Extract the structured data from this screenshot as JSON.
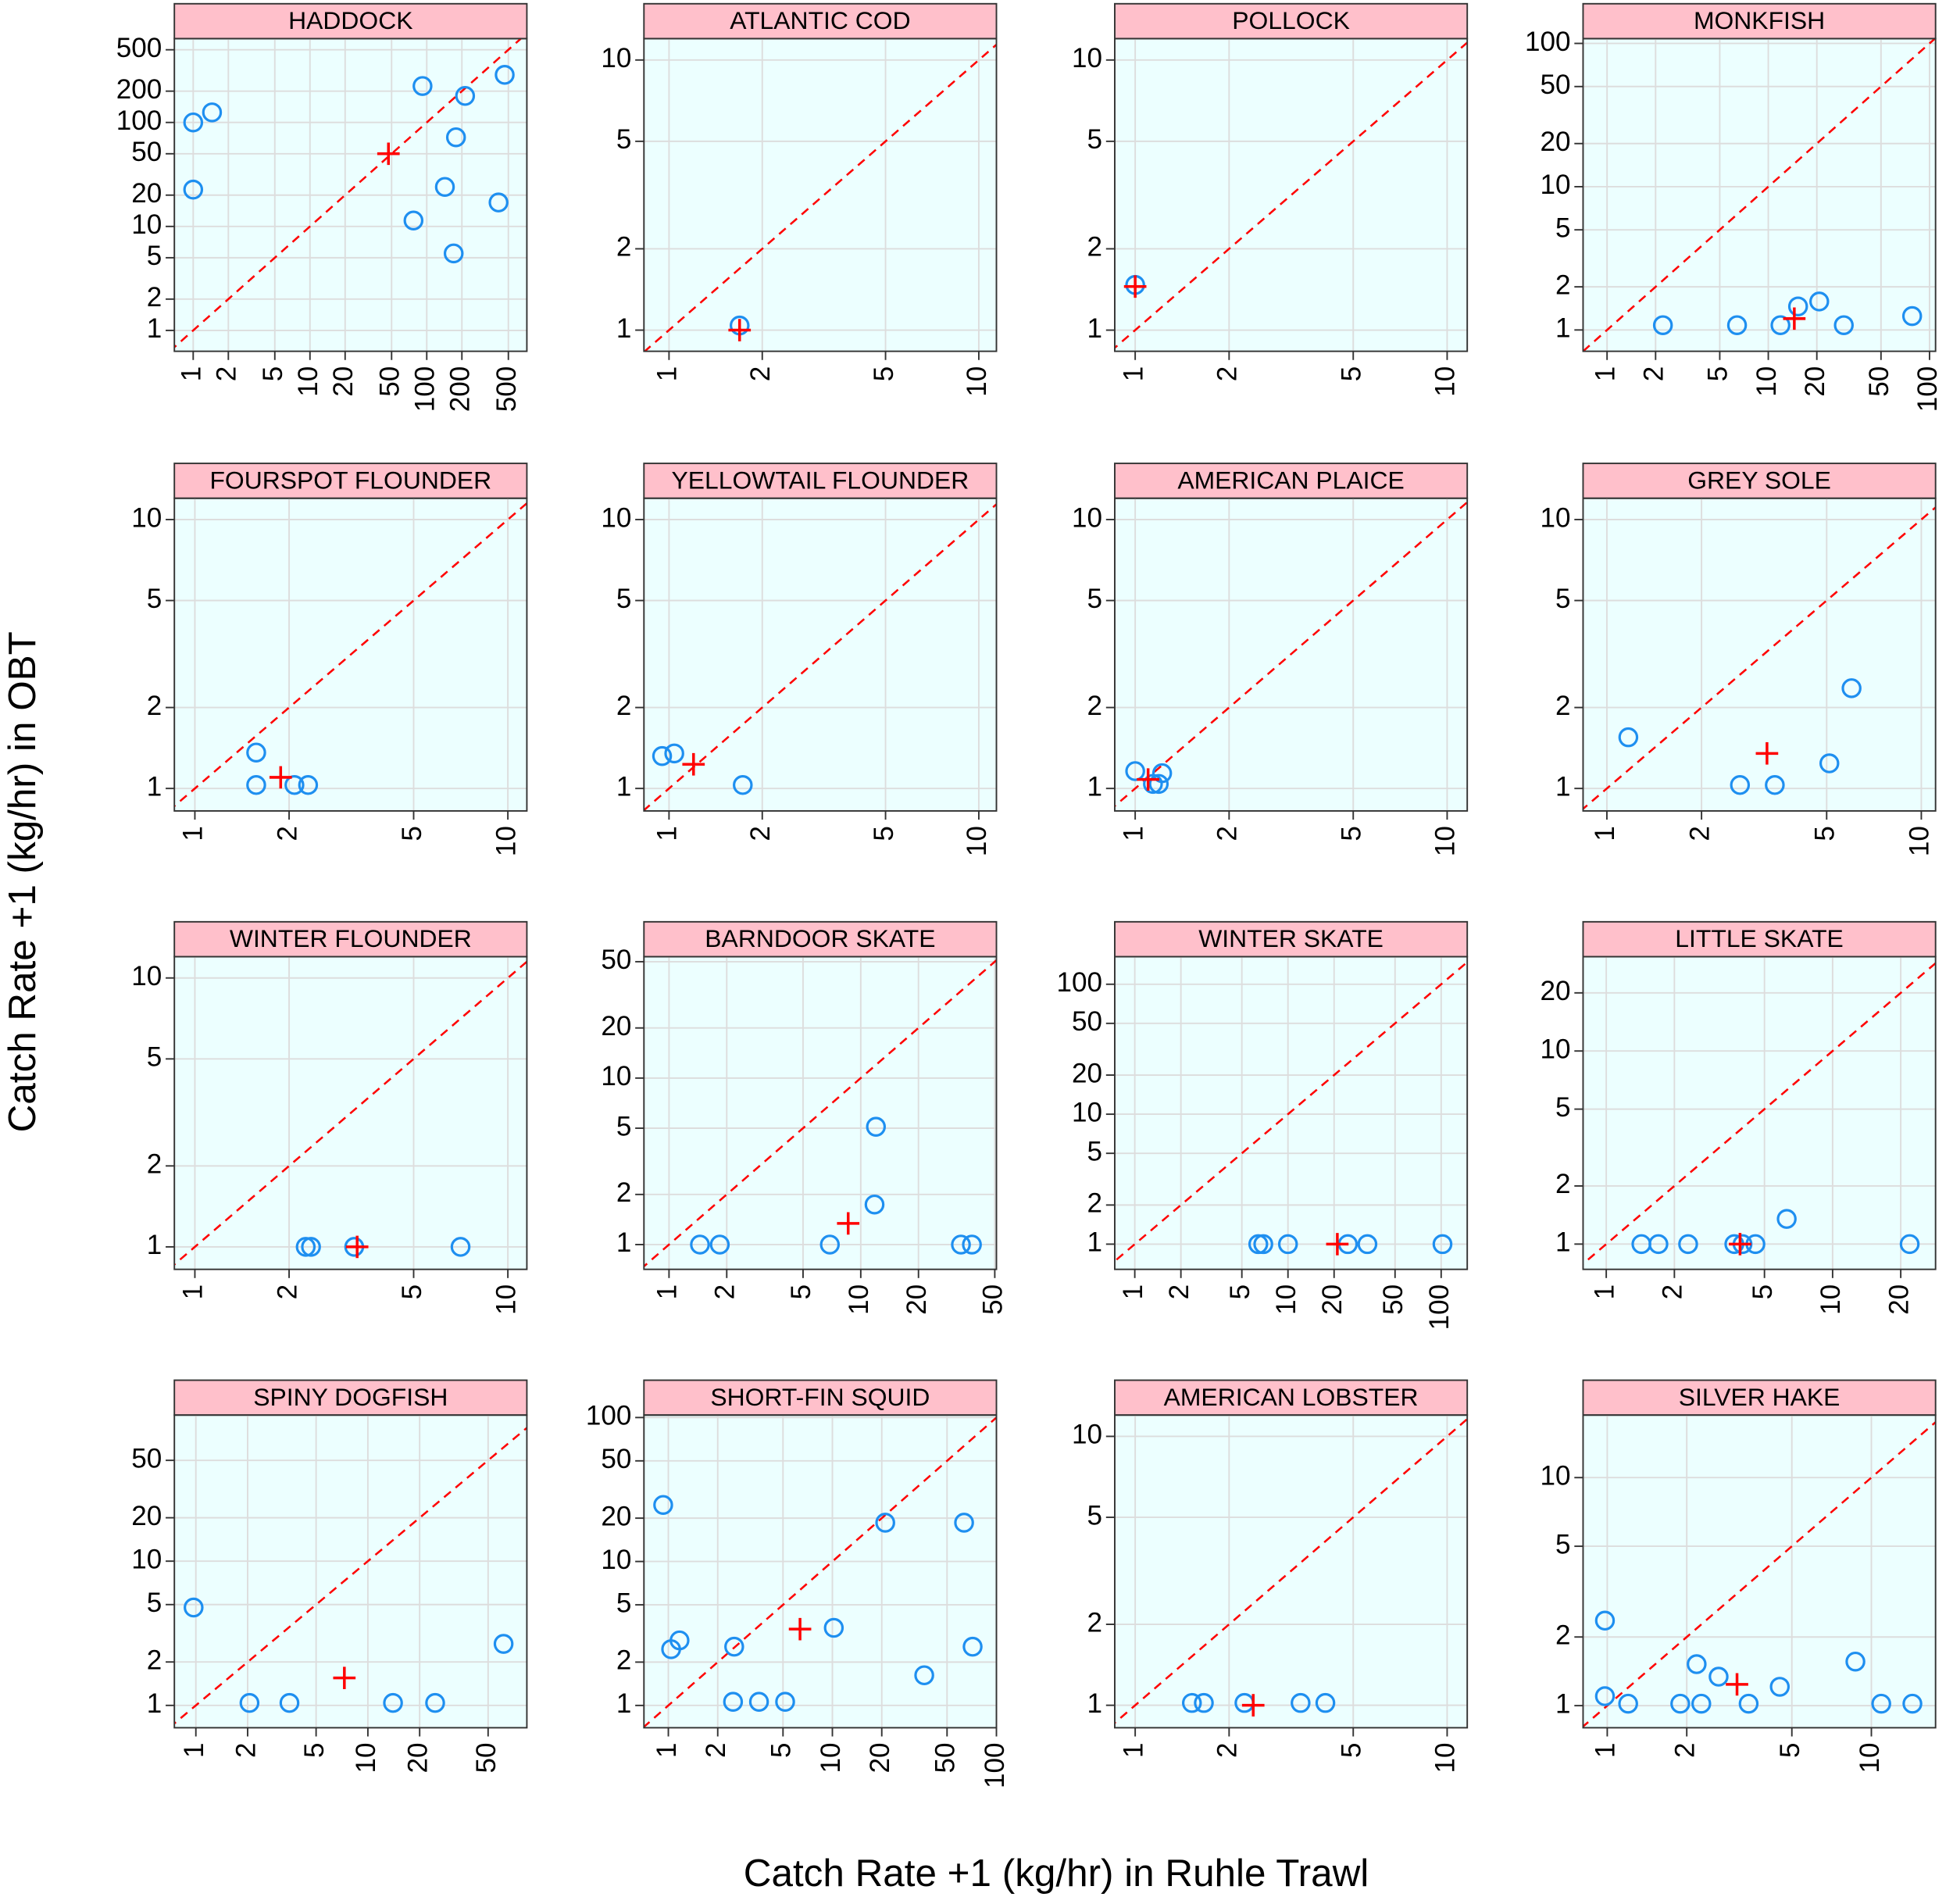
{
  "xlabel": "Catch Rate +1 (kg/hr) in Ruhle Trawl",
  "ylabel": "Catch Rate +1 (kg/hr) in OBT",
  "chart_data": [
    {
      "type": "scatter",
      "title": "HADDOCK",
      "xscale": "log",
      "yscale": "log",
      "grid": true,
      "identity_line": {
        "color": "#ff0000"
      },
      "xlim": [
        0.69,
        720
      ],
      "ylim": [
        0.63,
        640
      ],
      "xticks": [
        1,
        2,
        5,
        10,
        20,
        50,
        100,
        200,
        500
      ],
      "yticks": [
        1,
        2,
        5,
        10,
        20,
        50,
        100,
        200,
        500
      ],
      "series": [
        {
          "marker": "circle",
          "color": "#1e8ff0",
          "x": [
            1,
            1.45,
            1,
            92,
            213,
            465,
            178,
            143,
            412,
            77,
            170
          ],
          "values": [
            100,
            125,
            22.6,
            224,
            180,
            287,
            72,
            24,
            17,
            11.4,
            5.5
          ]
        },
        {
          "marker": "plus",
          "color": "#ff0000",
          "x": [
            47
          ],
          "values": [
            50
          ]
        }
      ]
    },
    {
      "type": "scatter",
      "title": "ATLANTIC COD",
      "xscale": "log",
      "yscale": "log",
      "grid": true,
      "identity_line": {
        "color": "#ff0000"
      },
      "xlim": [
        0.83,
        11.4
      ],
      "ylim": [
        0.835,
        12
      ],
      "xticks": [
        1,
        2,
        5,
        10
      ],
      "yticks": [
        1,
        2,
        5,
        10
      ],
      "series": [
        {
          "marker": "circle",
          "color": "#1e8ff0",
          "x": [
            1.69
          ],
          "values": [
            1.04
          ]
        },
        {
          "marker": "plus",
          "color": "#ff0000",
          "x": [
            1.69
          ],
          "values": [
            1.0
          ]
        }
      ]
    },
    {
      "type": "scatter",
      "title": "POLLOCK",
      "xscale": "log",
      "yscale": "log",
      "grid": true,
      "identity_line": {
        "color": "#ff0000"
      },
      "xlim": [
        0.86,
        11.6
      ],
      "ylim": [
        0.835,
        12
      ],
      "xticks": [
        1,
        2,
        5,
        10
      ],
      "yticks": [
        1,
        2,
        5,
        10
      ],
      "series": [
        {
          "marker": "circle",
          "color": "#1e8ff0",
          "x": [
            1.0
          ],
          "values": [
            1.47
          ]
        },
        {
          "marker": "plus",
          "color": "#ff0000",
          "x": [
            1.0
          ],
          "values": [
            1.45
          ]
        }
      ]
    },
    {
      "type": "scatter",
      "title": "MONKFISH",
      "xscale": "log",
      "yscale": "log",
      "grid": true,
      "identity_line": {
        "color": "#ff0000"
      },
      "xlim": [
        0.71,
        109
      ],
      "ylim": [
        0.71,
        108
      ],
      "xticks": [
        1,
        2,
        5,
        10,
        20,
        50,
        100
      ],
      "yticks": [
        1,
        2,
        5,
        10,
        20,
        50,
        100
      ],
      "series": [
        {
          "marker": "circle",
          "color": "#1e8ff0",
          "x": [
            2.22,
            6.4,
            11.9,
            15.3,
            20.7,
            29.4,
            78
          ],
          "values": [
            1.08,
            1.08,
            1.08,
            1.46,
            1.58,
            1.08,
            1.25
          ]
        },
        {
          "marker": "plus",
          "color": "#ff0000",
          "x": [
            14.5
          ],
          "values": [
            1.2
          ]
        }
      ]
    },
    {
      "type": "scatter",
      "title": "FOURSPOT FLOUNDER",
      "xscale": "log",
      "yscale": "log",
      "grid": true,
      "identity_line": {
        "color": "#ff0000"
      },
      "xlim": [
        0.86,
        11.5
      ],
      "ylim": [
        0.825,
        12
      ],
      "xticks": [
        1,
        2,
        5,
        10
      ],
      "yticks": [
        1,
        2,
        5,
        10
      ],
      "series": [
        {
          "marker": "circle",
          "color": "#1e8ff0",
          "x": [
            1.57,
            1.57,
            2.08,
            2.3
          ],
          "values": [
            1.36,
            1.03,
            1.03,
            1.03
          ]
        },
        {
          "marker": "plus",
          "color": "#ff0000",
          "x": [
            1.88
          ],
          "values": [
            1.1
          ]
        }
      ]
    },
    {
      "type": "scatter",
      "title": "YELLOWTAIL FLOUNDER",
      "xscale": "log",
      "yscale": "log",
      "grid": true,
      "identity_line": {
        "color": "#ff0000"
      },
      "xlim": [
        0.83,
        11.4
      ],
      "ylim": [
        0.825,
        12
      ],
      "xticks": [
        1,
        2,
        5,
        10
      ],
      "yticks": [
        1,
        2,
        5,
        10
      ],
      "series": [
        {
          "marker": "circle",
          "color": "#1e8ff0",
          "x": [
            0.95,
            1.04,
            1.73
          ],
          "values": [
            1.32,
            1.35,
            1.03
          ]
        },
        {
          "marker": "plus",
          "color": "#ff0000",
          "x": [
            1.2
          ],
          "values": [
            1.23
          ]
        }
      ]
    },
    {
      "type": "scatter",
      "title": "AMERICAN PLAICE",
      "xscale": "log",
      "yscale": "log",
      "grid": true,
      "identity_line": {
        "color": "#ff0000"
      },
      "xlim": [
        0.86,
        11.6
      ],
      "ylim": [
        0.825,
        12
      ],
      "xticks": [
        1,
        2,
        5,
        10
      ],
      "yticks": [
        1,
        2,
        5,
        10
      ],
      "series": [
        {
          "marker": "circle",
          "color": "#1e8ff0",
          "x": [
            1.0,
            1.14,
            1.19,
            1.22
          ],
          "values": [
            1.16,
            1.04,
            1.04,
            1.14
          ]
        },
        {
          "marker": "plus",
          "color": "#ff0000",
          "x": [
            1.1
          ],
          "values": [
            1.08
          ]
        }
      ]
    },
    {
      "type": "scatter",
      "title": "GREY SOLE",
      "xscale": "log",
      "yscale": "log",
      "grid": true,
      "identity_line": {
        "color": "#ff0000"
      },
      "xlim": [
        0.84,
        11.1
      ],
      "ylim": [
        0.825,
        12
      ],
      "xticks": [
        1,
        2,
        5,
        10
      ],
      "yticks": [
        1,
        2,
        5,
        10
      ],
      "series": [
        {
          "marker": "circle",
          "color": "#1e8ff0",
          "x": [
            1.17,
            2.65,
            3.42,
            5.1,
            6.0
          ],
          "values": [
            1.55,
            1.03,
            1.03,
            1.24,
            2.36
          ]
        },
        {
          "marker": "plus",
          "color": "#ff0000",
          "x": [
            3.23
          ],
          "values": [
            1.35
          ]
        }
      ]
    },
    {
      "type": "scatter",
      "title": "WINTER FLOUNDER",
      "xscale": "log",
      "yscale": "log",
      "grid": true,
      "identity_line": {
        "color": "#ff0000"
      },
      "xlim": [
        0.86,
        11.5
      ],
      "ylim": [
        0.825,
        12
      ],
      "xticks": [
        1,
        2,
        5,
        10
      ],
      "yticks": [
        1,
        2,
        5,
        10
      ],
      "series": [
        {
          "marker": "circle",
          "color": "#1e8ff0",
          "x": [
            2.26,
            2.35,
            3.23,
            7.06
          ],
          "values": [
            1.0,
            1.0,
            1.0,
            1.0
          ]
        },
        {
          "marker": "plus",
          "color": "#ff0000",
          "x": [
            3.3
          ],
          "values": [
            1.0
          ]
        }
      ]
    },
    {
      "type": "scatter",
      "title": "BARNDOOR SKATE",
      "xscale": "log",
      "yscale": "log",
      "grid": true,
      "identity_line": {
        "color": "#ff0000"
      },
      "xlim": [
        0.74,
        51
      ],
      "ylim": [
        0.71,
        53.6
      ],
      "xticks": [
        1,
        2,
        5,
        10,
        20,
        50
      ],
      "yticks": [
        1,
        2,
        5,
        10,
        20,
        50
      ],
      "series": [
        {
          "marker": "circle",
          "color": "#1e8ff0",
          "x": [
            1.45,
            1.84,
            6.9,
            11.8,
            12.0,
            33.3,
            38
          ],
          "values": [
            1.0,
            1.0,
            1.0,
            1.74,
            5.1,
            1.0,
            1.0
          ]
        },
        {
          "marker": "plus",
          "color": "#ff0000",
          "x": [
            8.6
          ],
          "values": [
            1.34
          ]
        }
      ]
    },
    {
      "type": "scatter",
      "title": "WINTER SKATE",
      "xscale": "log",
      "yscale": "log",
      "grid": true,
      "identity_line": {
        "color": "#ff0000"
      },
      "xlim": [
        0.74,
        148
      ],
      "ylim": [
        0.64,
        163
      ],
      "xticks": [
        1,
        2,
        5,
        10,
        20,
        50,
        100
      ],
      "yticks": [
        1,
        2,
        5,
        10,
        20,
        50,
        100
      ],
      "series": [
        {
          "marker": "circle",
          "color": "#1e8ff0",
          "x": [
            6.4,
            6.9,
            10,
            24.6,
            33,
            102
          ],
          "values": [
            1.0,
            1.0,
            1.0,
            1.0,
            1.0,
            1.0
          ]
        },
        {
          "marker": "plus",
          "color": "#ff0000",
          "x": [
            21
          ],
          "values": [
            1.0
          ]
        }
      ]
    },
    {
      "type": "scatter",
      "title": "LITTLE SKATE",
      "xscale": "log",
      "yscale": "log",
      "grid": true,
      "identity_line": {
        "color": "#ff0000"
      },
      "xlim": [
        0.79,
        28.5
      ],
      "ylim": [
        0.74,
        30.8
      ],
      "xticks": [
        1,
        2,
        5,
        10,
        20
      ],
      "yticks": [
        1,
        2,
        5,
        10,
        20
      ],
      "series": [
        {
          "marker": "circle",
          "color": "#1e8ff0",
          "x": [
            1.43,
            1.7,
            2.3,
            3.68,
            4.0,
            4.56,
            6.27,
            21.9
          ],
          "values": [
            1.0,
            1.0,
            1.0,
            1.0,
            1.0,
            1.0,
            1.35,
            1.0
          ]
        },
        {
          "marker": "plus",
          "color": "#ff0000",
          "x": [
            3.9
          ],
          "values": [
            1.0
          ]
        }
      ]
    },
    {
      "type": "scatter",
      "title": "SPINY DOGFISH",
      "xscale": "log",
      "yscale": "log",
      "grid": true,
      "identity_line": {
        "color": "#ff0000"
      },
      "xlim": [
        0.75,
        84
      ],
      "ylim": [
        0.7,
        103
      ],
      "xticks": [
        1,
        2,
        5,
        10,
        20,
        50
      ],
      "yticks": [
        1,
        2,
        5,
        10,
        20,
        50
      ],
      "series": [
        {
          "marker": "circle",
          "color": "#1e8ff0",
          "x": [
            0.97,
            2.05,
            3.5,
            14,
            24.6,
            61.5
          ],
          "values": [
            4.77,
            1.04,
            1.04,
            1.04,
            1.04,
            2.67
          ]
        },
        {
          "marker": "plus",
          "color": "#ff0000",
          "x": [
            7.3
          ],
          "values": [
            1.55
          ]
        }
      ]
    },
    {
      "type": "scatter",
      "title": "SHORT-FIN SQUID",
      "xscale": "log",
      "yscale": "log",
      "grid": true,
      "identity_line": {
        "color": "#ff0000"
      },
      "xlim": [
        0.71,
        100
      ],
      "ylim": [
        0.7,
        104
      ],
      "xticks": [
        1,
        2,
        5,
        10,
        20,
        50,
        100
      ],
      "yticks": [
        1,
        2,
        5,
        10,
        20,
        50,
        100
      ],
      "series": [
        {
          "marker": "circle",
          "color": "#1e8ff0",
          "x": [
            0.93,
            1.04,
            1.17,
            2.52,
            2.48,
            3.57,
            5.15,
            10.2,
            21,
            36.3,
            63.5,
            71.6
          ],
          "values": [
            24.7,
            2.46,
            2.83,
            2.56,
            1.06,
            1.06,
            1.06,
            3.46,
            18.6,
            1.62,
            18.6,
            2.56
          ]
        },
        {
          "marker": "plus",
          "color": "#ff0000",
          "x": [
            6.35
          ],
          "values": [
            3.39
          ]
        }
      ]
    },
    {
      "type": "scatter",
      "title": "AMERICAN LOBSTER",
      "xscale": "log",
      "yscale": "log",
      "grid": true,
      "identity_line": {
        "color": "#ff0000"
      },
      "xlim": [
        0.86,
        11.6
      ],
      "ylim": [
        0.825,
        12
      ],
      "xticks": [
        1,
        2,
        5,
        10
      ],
      "yticks": [
        1,
        2,
        5,
        10
      ],
      "series": [
        {
          "marker": "circle",
          "color": "#1e8ff0",
          "x": [
            1.52,
            1.66,
            2.24,
            3.39,
            4.07
          ],
          "values": [
            1.02,
            1.02,
            1.02,
            1.02,
            1.02
          ]
        },
        {
          "marker": "plus",
          "color": "#ff0000",
          "x": [
            2.39
          ],
          "values": [
            1.0
          ]
        }
      ]
    },
    {
      "type": "scatter",
      "title": "SILVER HAKE",
      "xscale": "log",
      "yscale": "log",
      "grid": true,
      "identity_line": {
        "color": "#ff0000"
      },
      "xlim": [
        0.81,
        17.5
      ],
      "ylim": [
        0.8,
        18.8
      ],
      "xticks": [
        1,
        2,
        5,
        10
      ],
      "yticks": [
        1,
        2,
        5,
        10
      ],
      "series": [
        {
          "marker": "circle",
          "color": "#1e8ff0",
          "x": [
            0.98,
            0.98,
            1.2,
            1.89,
            2.27,
            2.18,
            2.64,
            3.43,
            4.5,
            8.7,
            10.9,
            14.3
          ],
          "values": [
            2.36,
            1.1,
            1.02,
            1.02,
            1.02,
            1.52,
            1.34,
            1.02,
            1.21,
            1.56,
            1.02,
            1.02
          ]
        },
        {
          "marker": "plus",
          "color": "#ff0000",
          "x": [
            3.1
          ],
          "values": [
            1.24
          ]
        }
      ]
    }
  ]
}
